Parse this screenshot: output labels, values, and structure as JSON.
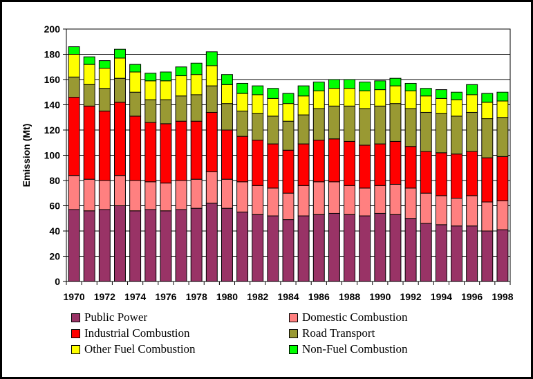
{
  "chart_data": {
    "type": "bar",
    "stacked": true,
    "ylabel": "Emission (Mt)",
    "ylim": [
      0,
      200
    ],
    "y_ticks": [
      0,
      20,
      40,
      60,
      80,
      100,
      120,
      140,
      160,
      180,
      200
    ],
    "grid": "horizontal",
    "legend_position": "bottom",
    "categories": [
      "1970",
      "1971",
      "1972",
      "1973",
      "1974",
      "1975",
      "1976",
      "1977",
      "1978",
      "1979",
      "1980",
      "1981",
      "1982",
      "1983",
      "1984",
      "1985",
      "1986",
      "1987",
      "1988",
      "1989",
      "1990",
      "1991",
      "1992",
      "1993",
      "1994",
      "1995",
      "1996",
      "1997",
      "1998"
    ],
    "x_tick_labels": [
      "1970",
      "1972",
      "1974",
      "1976",
      "1978",
      "1980",
      "1982",
      "1984",
      "1986",
      "1988",
      "1990",
      "1992",
      "1994",
      "1996",
      "1998"
    ],
    "series": [
      {
        "name": "Public Power",
        "color": "#993366",
        "values": [
          57,
          56,
          57,
          60,
          56,
          57,
          56,
          57,
          58,
          62,
          58,
          55,
          53,
          52,
          49,
          52,
          53,
          54,
          53,
          52,
          54,
          53,
          50,
          46,
          45,
          44,
          44,
          40,
          41
        ]
      },
      {
        "name": "Domestic Combustion",
        "color": "#FF8080",
        "values": [
          27,
          25,
          23,
          24,
          24,
          22,
          22,
          23,
          23,
          25,
          23,
          24,
          23,
          22,
          21,
          24,
          26,
          25,
          23,
          22,
          22,
          24,
          24,
          24,
          23,
          22,
          24,
          23,
          23
        ]
      },
      {
        "name": "Industrial Combustion",
        "color": "#FF0000",
        "values": [
          62,
          58,
          55,
          58,
          51,
          47,
          47,
          47,
          46,
          47,
          39,
          36,
          36,
          35,
          34,
          33,
          33,
          34,
          35,
          34,
          33,
          34,
          33,
          33,
          34,
          35,
          35,
          35,
          35
        ]
      },
      {
        "name": "Road Transport",
        "color": "#999933",
        "values": [
          16,
          17,
          18,
          19,
          19,
          18,
          19,
          20,
          21,
          21,
          21,
          20,
          21,
          22,
          23,
          23,
          25,
          26,
          28,
          29,
          30,
          30,
          30,
          31,
          31,
          30,
          31,
          31,
          31
        ]
      },
      {
        "name": "Other Fuel Combustion",
        "color": "#FFFF00",
        "values": [
          18,
          16,
          16,
          16,
          16,
          15,
          15,
          16,
          16,
          16,
          15,
          14,
          15,
          14,
          14,
          15,
          14,
          14,
          14,
          14,
          13,
          14,
          14,
          13,
          12,
          13,
          14,
          13,
          13
        ]
      },
      {
        "name": "Non-Fuel Combustion",
        "color": "#00FF00",
        "values": [
          6,
          6,
          6,
          7,
          6,
          6,
          7,
          7,
          9,
          11,
          8,
          8,
          7,
          8,
          8,
          8,
          7,
          7,
          7,
          7,
          7,
          6,
          6,
          6,
          7,
          6,
          8,
          7,
          7
        ]
      }
    ]
  }
}
